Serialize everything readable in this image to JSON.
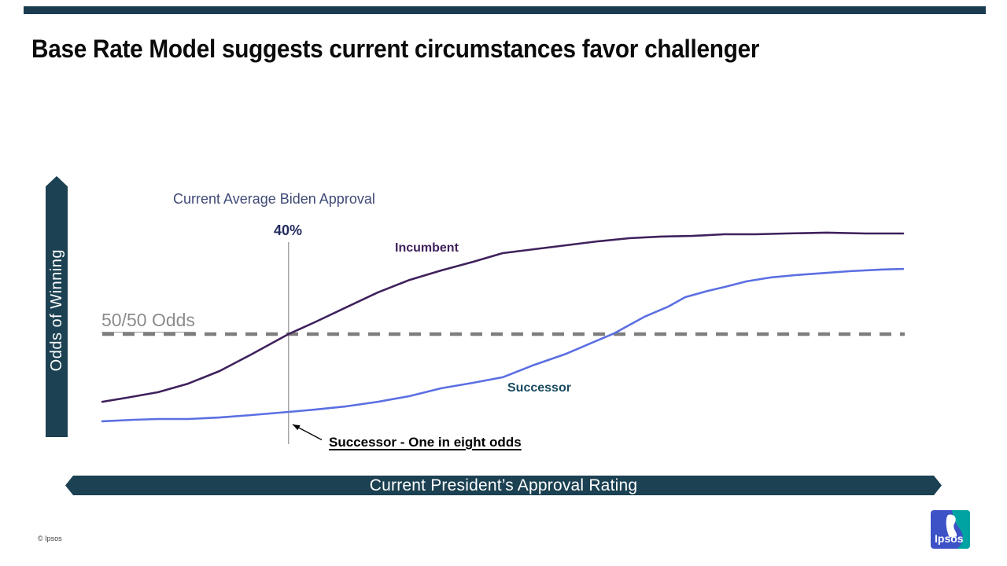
{
  "slide": {
    "title": "Base Rate Model suggests current circumstances favor challenger",
    "footer_copyright": "© Ipsos",
    "logo_text": "Ipsos"
  },
  "chart_data": {
    "type": "line",
    "title": "",
    "xlabel": "Current President’s Approval Rating",
    "ylabel": "Odds of Winning",
    "xlim": [
      30,
      73
    ],
    "ylim": [
      0,
      1
    ],
    "grid": false,
    "legend_position": "inline-labels",
    "marker": {
      "x": 40,
      "label": "40%",
      "header": "Current Average Biden Approval"
    },
    "reference_line": {
      "y": 0.5,
      "label": "50/50 Odds",
      "style": "dashed",
      "color": "#7E7E7E"
    },
    "annotation": {
      "text": "Successor - One in eight odds",
      "points_to": "successor curve at 40% approval"
    },
    "series": [
      {
        "name": "Incumbent",
        "color": "#3F215C",
        "x": [
          30,
          31.3,
          33,
          34.6,
          36.3,
          38,
          40,
          41.4,
          43.1,
          44.8,
          46.5,
          48.2,
          49.9,
          51.5,
          53.2,
          54.9,
          56.6,
          58.3,
          60,
          61.7,
          63.4,
          65.1,
          66.7,
          68.9,
          71,
          73
        ],
        "y": [
          0.174,
          0.193,
          0.22,
          0.261,
          0.322,
          0.402,
          0.5,
          0.557,
          0.629,
          0.701,
          0.761,
          0.807,
          0.848,
          0.89,
          0.909,
          0.928,
          0.947,
          0.962,
          0.97,
          0.973,
          0.981,
          0.981,
          0.985,
          0.989,
          0.985,
          0.985
        ]
      },
      {
        "name": "Successor",
        "color": "#5B6FE2",
        "x": [
          30,
          31.7,
          33,
          34.6,
          36.3,
          38,
          40,
          41.4,
          43.1,
          44.8,
          46.5,
          48.2,
          49.9,
          51.5,
          53.2,
          54.9,
          56.2,
          57.5,
          59.1,
          60.4,
          61.3,
          62.5,
          63.4,
          64.6,
          65.9,
          67.2,
          68.4,
          70.1,
          71.8,
          73
        ],
        "y": [
          0.08,
          0.087,
          0.091,
          0.091,
          0.098,
          0.11,
          0.125,
          0.136,
          0.152,
          0.174,
          0.201,
          0.239,
          0.265,
          0.292,
          0.352,
          0.405,
          0.455,
          0.504,
          0.583,
          0.633,
          0.678,
          0.708,
          0.727,
          0.754,
          0.773,
          0.784,
          0.792,
          0.803,
          0.811,
          0.814
        ]
      }
    ]
  }
}
